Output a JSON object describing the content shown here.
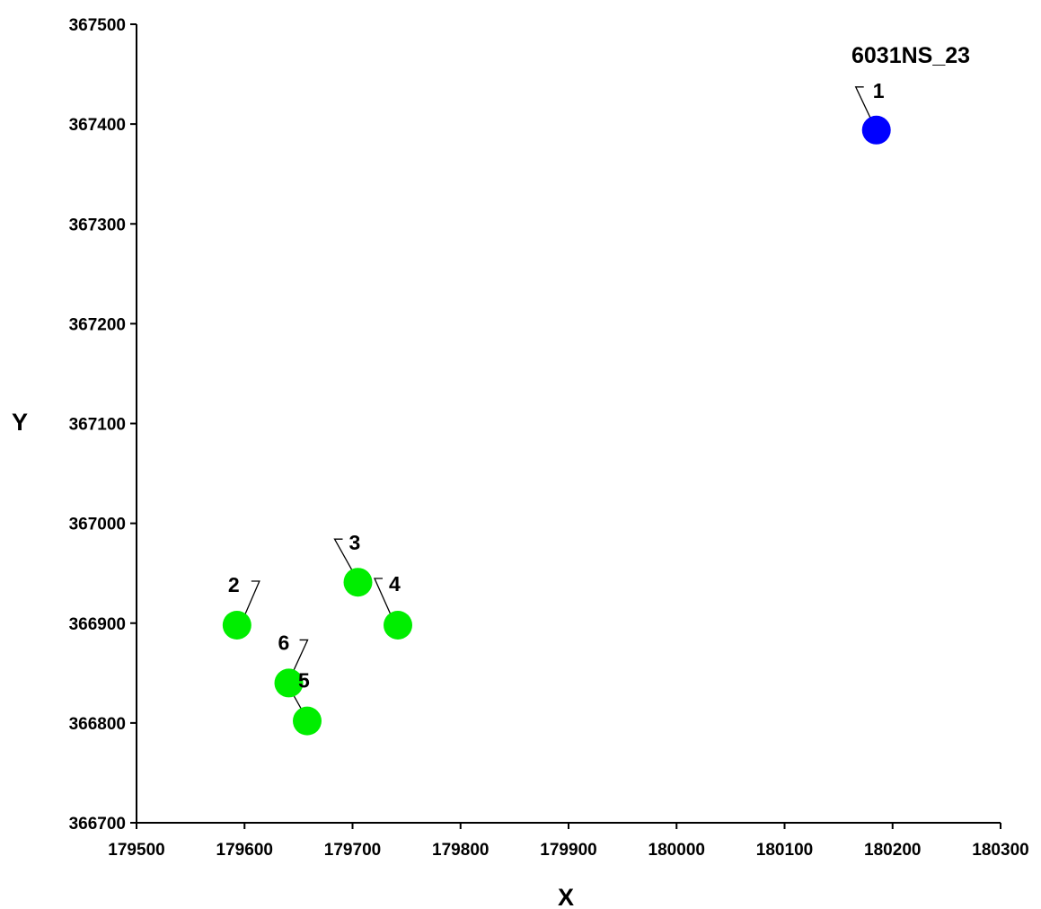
{
  "chart_data": {
    "type": "scatter",
    "title": "",
    "xlabel": "X",
    "ylabel": "Y",
    "xlim": [
      179500,
      180300
    ],
    "ylim": [
      366700,
      367500
    ],
    "xticks": [
      179500,
      179600,
      179700,
      179800,
      179900,
      180000,
      180100,
      180200,
      180300
    ],
    "yticks": [
      366700,
      366800,
      366900,
      367000,
      367100,
      367200,
      367300,
      367400,
      367500
    ],
    "grid": false,
    "legend": "none",
    "annotations": [
      "6031NS_23"
    ],
    "series": [
      {
        "color": "#0000ff",
        "points": [
          {
            "label": "1",
            "x": 180185,
            "y": 367394
          }
        ]
      },
      {
        "color": "#00ee00",
        "points": [
          {
            "label": "2",
            "x": 179593,
            "y": 366898
          },
          {
            "label": "3",
            "x": 179705,
            "y": 366941
          },
          {
            "label": "4",
            "x": 179742,
            "y": 366898
          },
          {
            "label": "5",
            "x": 179658,
            "y": 366802
          },
          {
            "label": "6",
            "x": 179641,
            "y": 366840
          }
        ]
      }
    ]
  }
}
